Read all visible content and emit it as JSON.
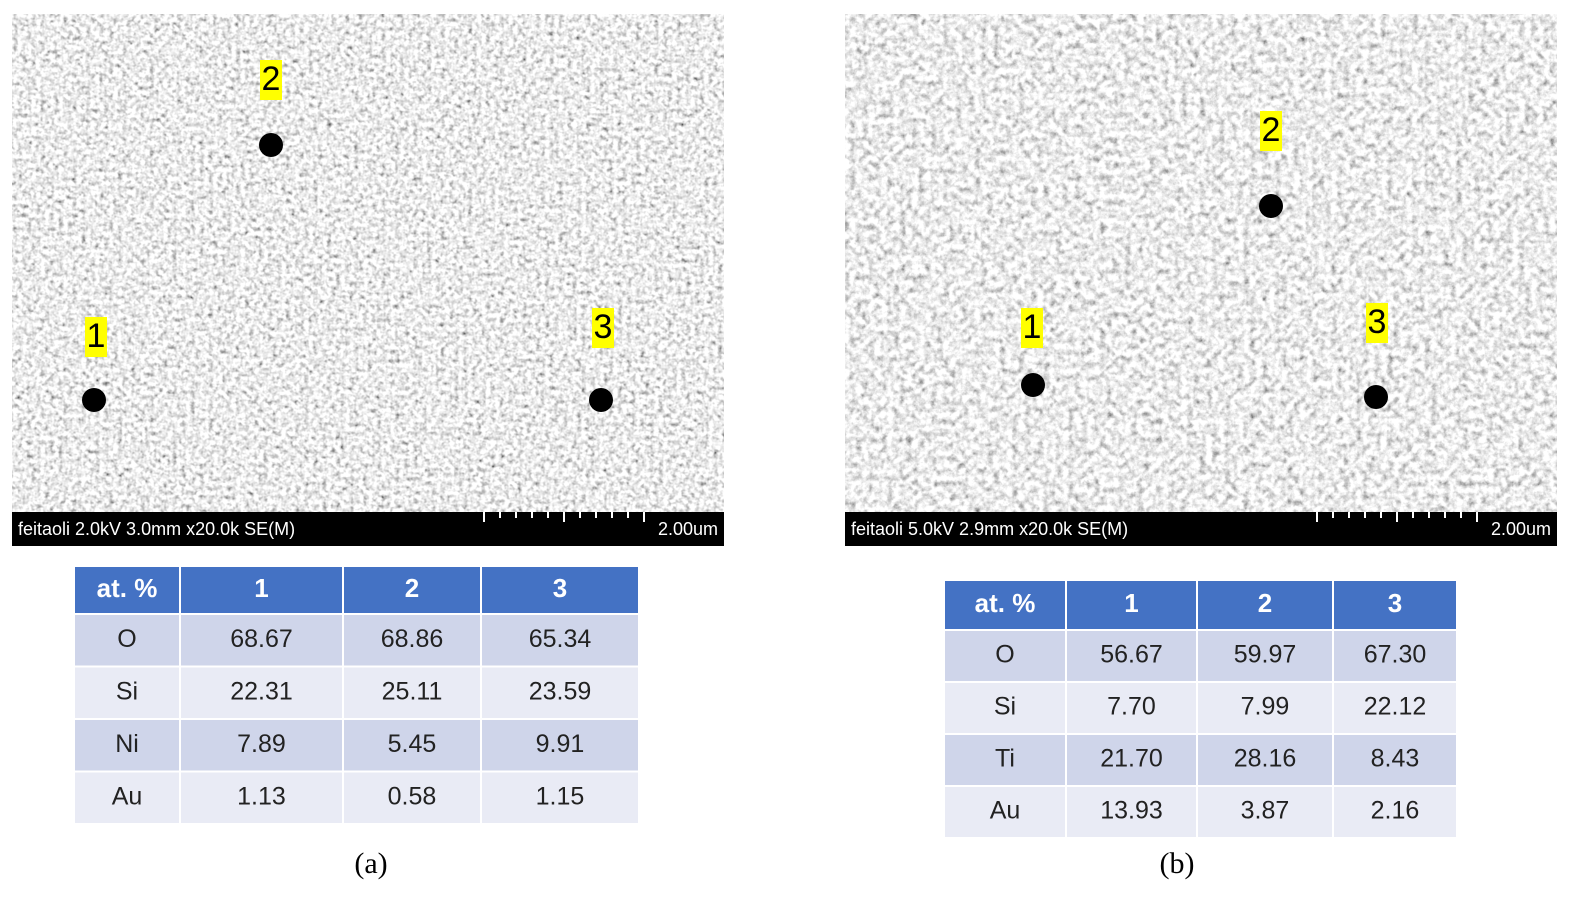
{
  "panels": [
    {
      "image": {
        "info": "feitaoli 2.0kV 3.0mm x20.0k SE(M)",
        "scale": "2.00um",
        "points": [
          "1",
          "2",
          "3"
        ]
      },
      "table": {
        "header": [
          "at. %",
          "1",
          "2",
          "3"
        ],
        "rows": [
          [
            "O",
            "68.67",
            "68.86",
            "65.34"
          ],
          [
            "Si",
            "22.31",
            "25.11",
            "23.59"
          ],
          [
            "Ni",
            "7.89",
            "5.45",
            "9.91"
          ],
          [
            "Au",
            "1.13",
            "0.58",
            "1.15"
          ]
        ]
      },
      "caption": "(a)"
    },
    {
      "image": {
        "info": "feitaoli 5.0kV 2.9mm x20.0k SE(M)",
        "scale": "2.00um",
        "points": [
          "1",
          "2",
          "3"
        ]
      },
      "table": {
        "header": [
          "at. %",
          "1",
          "2",
          "3"
        ],
        "rows": [
          [
            "O",
            "56.67",
            "59.97",
            "67.30"
          ],
          [
            "Si",
            "7.70",
            "7.99",
            "22.12"
          ],
          [
            "Ti",
            "21.70",
            "28.16",
            "8.43"
          ],
          [
            "Au",
            "13.93",
            "3.87",
            "2.16"
          ]
        ]
      },
      "caption": "(b)"
    }
  ]
}
